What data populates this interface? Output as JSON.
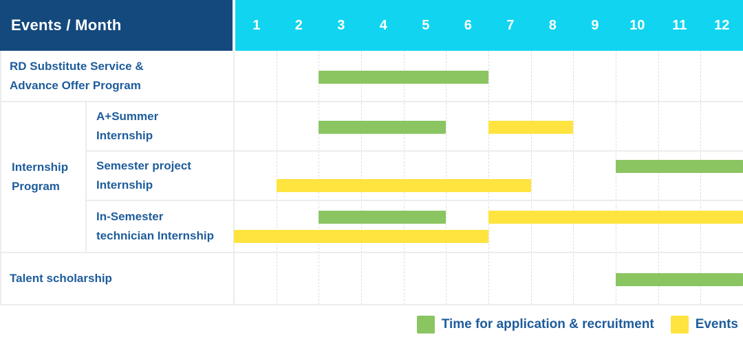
{
  "colors": {
    "header_bg": "#14497D",
    "months_bg": "#10D4F0",
    "header_text": "#FFFFFF",
    "label_text": "#1E5C9B",
    "green": "#8BC562",
    "yellow": "#FFE33F",
    "grid_solid": "#ECECEC",
    "grid_dashed": "#DDDDDD"
  },
  "header": {
    "title": "Events / Month",
    "months": [
      "1",
      "2",
      "3",
      "4",
      "5",
      "6",
      "7",
      "8",
      "9",
      "10",
      "11",
      "12"
    ]
  },
  "chart_data": {
    "type": "bar",
    "variant": "gantt",
    "title": "Events / Month",
    "xlabel": "Month",
    "x_range": [
      1,
      12
    ],
    "grid": true,
    "legend_position": "bottom-right",
    "rows": [
      {
        "group": null,
        "label": "RD Substitute Service & Advance Offer Program",
        "label_lines": [
          "RD Substitute Service &",
          "Advance Offer Program"
        ],
        "bars": [
          {
            "kind": "application",
            "color": "green",
            "start_month": 3,
            "end_month": 6,
            "line": "center"
          }
        ]
      },
      {
        "group": "Internship Program",
        "label": "A+Summer Internship",
        "label_lines": [
          "A+Summer",
          "Internship"
        ],
        "bars": [
          {
            "kind": "application",
            "color": "green",
            "start_month": 3,
            "end_month": 5,
            "line": "center"
          },
          {
            "kind": "event",
            "color": "yellow",
            "start_month": 7,
            "end_month": 8,
            "line": "center"
          }
        ]
      },
      {
        "group": "Internship Program",
        "label": "Semester project Internship",
        "label_lines": [
          "Semester project",
          "Internship"
        ],
        "bars": [
          {
            "kind": "application",
            "color": "green",
            "start_month": 10,
            "end_month": 12,
            "line": "top"
          },
          {
            "kind": "event",
            "color": "yellow",
            "start_month": 2,
            "end_month": 7,
            "line": "bottom"
          }
        ]
      },
      {
        "group": "Internship Program",
        "label": "In-Semester technician Internship",
        "label_lines": [
          "In-Semester",
          "technician Internship"
        ],
        "bars": [
          {
            "kind": "application",
            "color": "green",
            "start_month": 3,
            "end_month": 5,
            "line": "top"
          },
          {
            "kind": "event",
            "color": "yellow",
            "start_month": 7,
            "end_month": 12,
            "line": "top"
          },
          {
            "kind": "event",
            "color": "yellow",
            "start_month": 1,
            "end_month": 6,
            "line": "bottom"
          }
        ]
      },
      {
        "group": null,
        "label": "Talent scholarship",
        "label_lines": [
          "Talent scholarship"
        ],
        "bars": [
          {
            "kind": "application",
            "color": "green",
            "start_month": 10,
            "end_month": 12,
            "line": "center"
          }
        ]
      }
    ],
    "legend": [
      {
        "color": "green",
        "label": "Time for application & recruitment"
      },
      {
        "color": "yellow",
        "label": "Events"
      }
    ]
  }
}
